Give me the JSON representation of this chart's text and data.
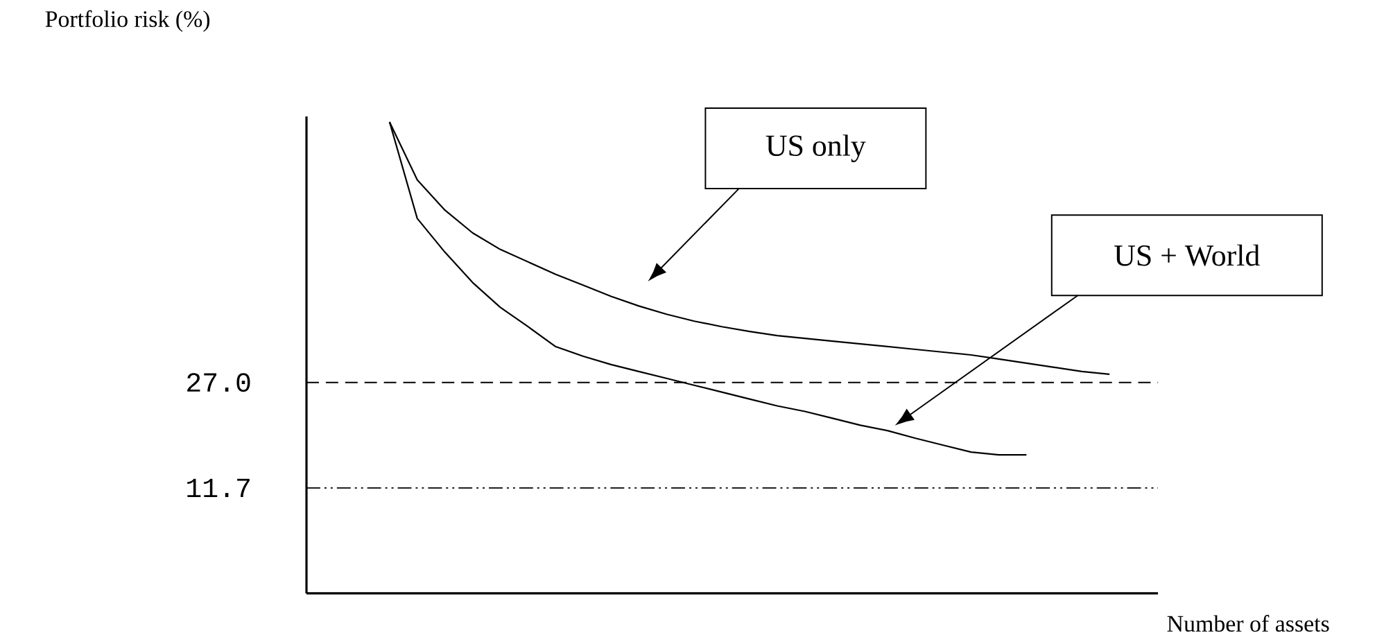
{
  "chart_data": {
    "type": "line",
    "xlabel": "Number of assets",
    "ylabel": "Portfolio risk (%)",
    "categories": [
      null,
      null,
      null,
      null,
      null,
      null,
      null,
      null,
      null,
      null,
      null,
      null,
      null,
      null,
      null,
      null,
      null,
      null,
      null,
      null,
      null,
      null,
      null,
      null,
      null,
      null,
      null
    ],
    "series": [
      {
        "name": "US only",
        "color": "#000000",
        "values": [
          64.8,
          56.4,
          52.0,
          48.7,
          46.3,
          44.5,
          42.7,
          41.1,
          39.5,
          38.1,
          36.9,
          35.9,
          35.1,
          34.4,
          33.8,
          33.4,
          33.0,
          32.6,
          32.2,
          31.8,
          31.4,
          31.0,
          30.4,
          29.8,
          29.2,
          28.6,
          28.2
        ]
      },
      {
        "name": "US + World",
        "color": "#000000",
        "values": [
          64.8,
          50.8,
          45.9,
          41.5,
          37.9,
          35.1,
          32.2,
          30.8,
          29.6,
          28.6,
          27.6,
          26.6,
          25.6,
          24.6,
          23.6,
          22.8,
          21.8,
          20.8,
          20.0,
          18.9,
          17.9,
          16.9,
          16.5,
          16.5,
          null,
          null,
          null
        ]
      }
    ],
    "ylim": [
      -3.6,
      65.6
    ],
    "yticks": [
      {
        "value": 11.7,
        "label": "11.7"
      },
      {
        "value": 27.0,
        "label": "27.0"
      }
    ],
    "tick_labels": "y",
    "ref_lines": [
      {
        "axis": "y",
        "value": 27.0,
        "color": "#000000",
        "line_style": "dashed"
      },
      {
        "axis": "y",
        "value": 11.7,
        "color": "#000000",
        "line_style": "dashdotdotted"
      }
    ]
  }
}
